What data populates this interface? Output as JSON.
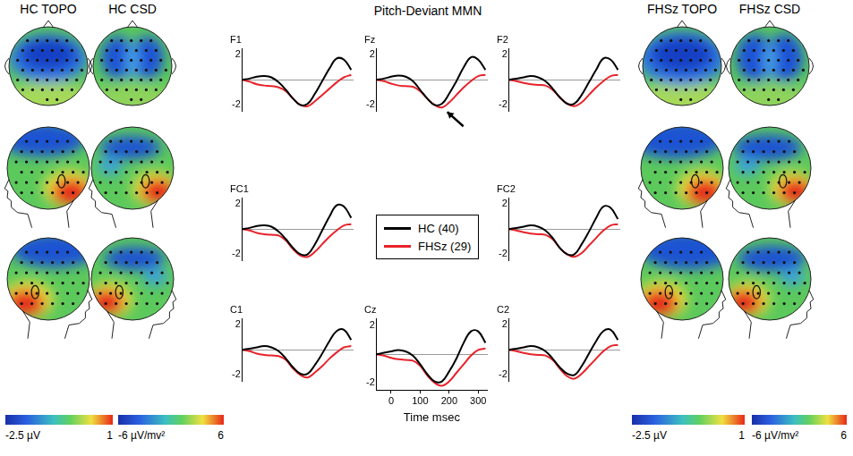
{
  "title": "Pitch-Deviant MMN",
  "legend": "center",
  "topomaps": [
    {
      "title": "HC TOPO",
      "colorbar": {
        "range": [
          -2.5,
          1
        ],
        "ticks": [
          {
            "value": -2.5,
            "label": "-2.5 µV"
          },
          1
        ]
      }
    },
    {
      "title": "HC CSD",
      "colorbar": {
        "range": [
          -6,
          6
        ],
        "ticks": [
          {
            "value": -6,
            "label": "-6 µV/mv²"
          },
          6
        ]
      }
    },
    {
      "title": "FHSz TOPO",
      "colorbar": {
        "range": [
          -2.5,
          1
        ],
        "ticks": [
          {
            "value": -2.5,
            "label": "-2.5 µV"
          },
          1
        ]
      }
    },
    {
      "title": "FHSz CSD",
      "colorbar": {
        "range": [
          -6,
          6
        ],
        "ticks": [
          {
            "value": -6,
            "label": "-6 µV/mv²"
          },
          6
        ]
      }
    }
  ],
  "chart_data": [
    {
      "type": "line",
      "title": "F1",
      "x": [
        -50,
        -25,
        0,
        25,
        50,
        75,
        100,
        125,
        150,
        175,
        200,
        225,
        250,
        275,
        300,
        325
      ],
      "xlim": [
        -50,
        330
      ],
      "ylim": [
        -2.5,
        2.5
      ],
      "yticks": [
        -2,
        2
      ],
      "tick_labels": "y",
      "series": [
        {
          "name": "HC (40)",
          "color": "#000000",
          "values": [
            0,
            0.1,
            0.25,
            0.3,
            0.2,
            -0.2,
            -0.8,
            -1.5,
            -2.0,
            -1.9,
            -1.1,
            -0.1,
            0.9,
            1.7,
            1.6,
            0.8
          ]
        },
        {
          "name": "FHSz (29)",
          "color": "#e8222a",
          "values": [
            0,
            -0.15,
            -0.35,
            -0.45,
            -0.5,
            -0.6,
            -0.9,
            -1.5,
            -2.0,
            -2.1,
            -1.7,
            -1.2,
            -0.7,
            -0.2,
            0.2,
            0.4
          ]
        }
      ]
    },
    {
      "type": "line",
      "title": "Fz",
      "x": [
        -50,
        -25,
        0,
        25,
        50,
        75,
        100,
        125,
        150,
        175,
        200,
        225,
        250,
        275,
        300,
        325
      ],
      "xlim": [
        -50,
        330
      ],
      "ylim": [
        -2.5,
        2.5
      ],
      "yticks": [
        -2,
        2
      ],
      "tick_labels": "y",
      "series": [
        {
          "name": "HC (40)",
          "color": "#000000",
          "values": [
            0,
            0.1,
            0.25,
            0.35,
            0.25,
            -0.1,
            -0.8,
            -1.5,
            -2.0,
            -1.9,
            -1.1,
            -0.1,
            1.0,
            1.8,
            1.6,
            0.8
          ]
        },
        {
          "name": "FHSz (29)",
          "color": "#e8222a",
          "values": [
            0,
            -0.1,
            -0.3,
            -0.45,
            -0.5,
            -0.55,
            -0.9,
            -1.5,
            -2.0,
            -2.2,
            -1.8,
            -1.2,
            -0.6,
            -0.1,
            0.3,
            0.4
          ]
        }
      ]
    },
    {
      "type": "line",
      "title": "F2",
      "x": [
        -50,
        -25,
        0,
        25,
        50,
        75,
        100,
        125,
        150,
        175,
        200,
        225,
        250,
        275,
        300,
        325
      ],
      "xlim": [
        -50,
        330
      ],
      "ylim": [
        -2.5,
        2.5
      ],
      "yticks": [
        -2,
        2
      ],
      "tick_labels": "y",
      "series": [
        {
          "name": "HC (40)",
          "color": "#000000",
          "values": [
            0,
            0.1,
            0.2,
            0.3,
            0.2,
            -0.1,
            -0.7,
            -1.4,
            -1.9,
            -1.9,
            -1.2,
            -0.2,
            0.8,
            1.7,
            1.6,
            0.8
          ]
        },
        {
          "name": "FHSz (29)",
          "color": "#e8222a",
          "values": [
            0,
            -0.1,
            -0.25,
            -0.35,
            -0.4,
            -0.45,
            -0.8,
            -1.4,
            -1.9,
            -2.1,
            -1.8,
            -1.2,
            -0.6,
            -0.1,
            0.3,
            0.4
          ]
        }
      ]
    },
    {
      "type": "line",
      "title": "FC1",
      "x": [
        -50,
        -25,
        0,
        25,
        50,
        75,
        100,
        125,
        150,
        175,
        200,
        225,
        250,
        275,
        300,
        325
      ],
      "xlim": [
        -50,
        330
      ],
      "ylim": [
        -2.5,
        2.5
      ],
      "yticks": [
        -2,
        2
      ],
      "tick_labels": "y",
      "series": [
        {
          "name": "HC (40)",
          "color": "#000000",
          "values": [
            0,
            0.1,
            0.25,
            0.3,
            0.2,
            -0.2,
            -0.8,
            -1.5,
            -2.0,
            -2.0,
            -1.2,
            -0.1,
            1.0,
            1.9,
            1.8,
            0.9
          ]
        },
        {
          "name": "FHSz (29)",
          "color": "#e8222a",
          "values": [
            0,
            -0.1,
            -0.3,
            -0.4,
            -0.45,
            -0.5,
            -0.9,
            -1.6,
            -2.1,
            -2.2,
            -1.8,
            -1.2,
            -0.6,
            -0.1,
            0.3,
            0.4
          ]
        }
      ]
    },
    {
      "type": "line",
      "title": "FC2",
      "x": [
        -50,
        -25,
        0,
        25,
        50,
        75,
        100,
        125,
        150,
        175,
        200,
        225,
        250,
        275,
        300,
        325
      ],
      "xlim": [
        -50,
        330
      ],
      "ylim": [
        -2.5,
        2.5
      ],
      "yticks": [
        -2,
        2
      ],
      "tick_labels": "y",
      "series": [
        {
          "name": "HC (40)",
          "color": "#000000",
          "values": [
            0,
            0.1,
            0.2,
            0.3,
            0.2,
            -0.1,
            -0.7,
            -1.5,
            -2.0,
            -2.0,
            -1.2,
            -0.2,
            0.9,
            1.8,
            1.7,
            0.8
          ]
        },
        {
          "name": "FHSz (29)",
          "color": "#e8222a",
          "values": [
            0,
            -0.1,
            -0.25,
            -0.35,
            -0.4,
            -0.45,
            -0.8,
            -1.5,
            -2.0,
            -2.2,
            -1.9,
            -1.3,
            -0.7,
            -0.1,
            0.3,
            0.4
          ]
        }
      ]
    },
    {
      "type": "line",
      "title": "C1",
      "x": [
        -50,
        -25,
        0,
        25,
        50,
        75,
        100,
        125,
        150,
        175,
        200,
        225,
        250,
        275,
        300,
        325
      ],
      "xlim": [
        -50,
        330
      ],
      "ylim": [
        -2.5,
        2.5
      ],
      "yticks": [
        -2,
        2
      ],
      "tick_labels": "y",
      "series": [
        {
          "name": "HC (40)",
          "color": "#000000",
          "values": [
            0,
            0.1,
            0.2,
            0.3,
            0.2,
            -0.1,
            -0.7,
            -1.4,
            -1.9,
            -1.9,
            -1.2,
            -0.3,
            0.7,
            1.5,
            1.6,
            0.8
          ]
        },
        {
          "name": "FHSz (29)",
          "color": "#e8222a",
          "values": [
            0,
            -0.1,
            -0.3,
            -0.4,
            -0.45,
            -0.5,
            -0.8,
            -1.5,
            -2.0,
            -2.2,
            -1.8,
            -1.3,
            -0.7,
            -0.2,
            0.2,
            0.3
          ]
        }
      ]
    },
    {
      "type": "line",
      "title": "Cz",
      "x": [
        -50,
        -25,
        0,
        25,
        50,
        75,
        100,
        125,
        150,
        175,
        200,
        225,
        250,
        275,
        300,
        325
      ],
      "xlim": [
        -50,
        330
      ],
      "xticks": [
        0,
        100,
        200,
        300
      ],
      "xlabel": "Time msec",
      "ylim": [
        -2.5,
        2.5
      ],
      "yticks": [
        -2,
        2
      ],
      "series": [
        {
          "name": "HC (40)",
          "color": "#000000",
          "values": [
            0,
            0.1,
            0.2,
            0.3,
            0.2,
            -0.1,
            -0.7,
            -1.4,
            -1.9,
            -1.9,
            -1.2,
            -0.3,
            0.8,
            1.6,
            1.6,
            0.8
          ]
        },
        {
          "name": "FHSz (29)",
          "color": "#e8222a",
          "values": [
            0,
            -0.1,
            -0.25,
            -0.35,
            -0.4,
            -0.45,
            -0.8,
            -1.5,
            -2.0,
            -2.2,
            -1.9,
            -1.3,
            -0.7,
            -0.1,
            0.3,
            0.4
          ]
        }
      ]
    },
    {
      "type": "line",
      "title": "C2",
      "x": [
        -50,
        -25,
        0,
        25,
        50,
        75,
        100,
        125,
        150,
        175,
        200,
        225,
        250,
        275,
        300,
        325
      ],
      "xlim": [
        -50,
        330
      ],
      "ylim": [
        -2.5,
        2.5
      ],
      "yticks": [
        -2,
        2
      ],
      "tick_labels": "y",
      "series": [
        {
          "name": "HC (40)",
          "color": "#000000",
          "values": [
            0,
            0.1,
            0.2,
            0.3,
            0.2,
            -0.1,
            -0.7,
            -1.4,
            -1.9,
            -2.0,
            -1.3,
            -0.3,
            0.7,
            1.5,
            1.6,
            0.8
          ]
        },
        {
          "name": "FHSz (29)",
          "color": "#e8222a",
          "values": [
            0,
            -0.1,
            -0.25,
            -0.35,
            -0.4,
            -0.45,
            -0.8,
            -1.5,
            -2.1,
            -2.3,
            -1.9,
            -1.3,
            -0.7,
            -0.1,
            0.3,
            0.4
          ]
        }
      ]
    }
  ]
}
